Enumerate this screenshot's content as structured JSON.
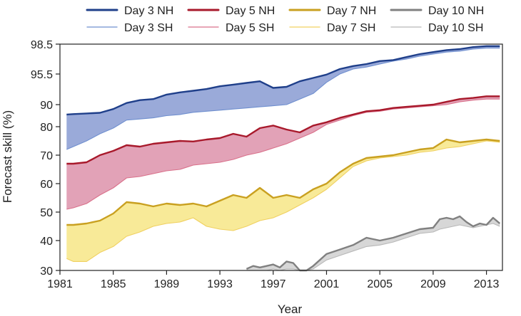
{
  "chart_data": {
    "type": "area",
    "title": "",
    "xlabel": "Year",
    "ylabel": "Forecast skill (%)",
    "x_ticks": [
      1981,
      1985,
      1989,
      1993,
      1997,
      2001,
      2005,
      2009,
      2013
    ],
    "y_ticks": [
      30,
      40,
      50,
      60,
      70,
      80,
      90,
      95.5,
      98.5
    ],
    "xlim": [
      1981,
      2014.2
    ],
    "ylim": [
      30,
      98.5
    ],
    "legend_position": "top",
    "series": [
      {
        "name": "Day 3 NH",
        "hemisphere": "NH",
        "day": 3,
        "color": "#1f3f8a",
        "x": [
          1981.5,
          1982,
          1983,
          1984,
          1985,
          1986,
          1987,
          1988,
          1989,
          1990,
          1991,
          1992,
          1993,
          1994,
          1995,
          1996,
          1997,
          1998,
          1999,
          2000,
          2001,
          2002,
          2003,
          2004,
          2005,
          2006,
          2007,
          2008,
          2009,
          2010,
          2011,
          2012,
          2013,
          2014
        ],
        "y": [
          85.5,
          85.7,
          86.0,
          86.3,
          88.0,
          90.3,
          90.8,
          91.0,
          91.8,
          92.2,
          92.5,
          92.8,
          93.3,
          93.6,
          93.9,
          94.2,
          93.0,
          93.2,
          94.2,
          94.8,
          95.4,
          96.0,
          96.3,
          96.5,
          96.8,
          96.9,
          97.2,
          97.5,
          97.7,
          97.9,
          98.0,
          98.2,
          98.3,
          98.3
        ]
      },
      {
        "name": "Day 3 SH",
        "hemisphere": "SH",
        "day": 3,
        "color": "#6f8fcf",
        "x": [
          1981.5,
          1982,
          1983,
          1984,
          1985,
          1986,
          1987,
          1988,
          1989,
          1990,
          1991,
          1992,
          1993,
          1994,
          1995,
          1996,
          1997,
          1998,
          1999,
          2000,
          2001,
          2002,
          2003,
          2004,
          2005,
          2006,
          2007,
          2008,
          2009,
          2010,
          2011,
          2012,
          2013,
          2014
        ],
        "y": [
          72.0,
          73.0,
          75.0,
          77.5,
          79.5,
          83.0,
          83.5,
          84.0,
          85.0,
          85.5,
          86.5,
          87.0,
          87.5,
          88.0,
          88.5,
          89.0,
          89.5,
          90.0,
          91.0,
          92.0,
          94.0,
          95.5,
          96.0,
          96.2,
          96.5,
          96.8,
          97.0,
          97.3,
          97.5,
          97.7,
          97.8,
          98.0,
          98.1,
          98.1
        ]
      },
      {
        "name": "Day 5 NH",
        "hemisphere": "NH",
        "day": 5,
        "color": "#a8192b",
        "x": [
          1981.5,
          1982,
          1983,
          1984,
          1985,
          1986,
          1987,
          1988,
          1989,
          1990,
          1991,
          1992,
          1993,
          1994,
          1995,
          1996,
          1997,
          1998,
          1999,
          2000,
          2001,
          2002,
          2003,
          2004,
          2005,
          2006,
          2007,
          2008,
          2009,
          2010,
          2011,
          2012,
          2013,
          2014
        ],
        "y": [
          67.0,
          67.0,
          67.5,
          70.0,
          71.5,
          73.5,
          73.0,
          74.0,
          74.5,
          75.0,
          74.8,
          75.5,
          76.0,
          77.5,
          76.5,
          79.5,
          80.5,
          79.0,
          78.0,
          80.5,
          82.0,
          84.0,
          85.5,
          87.0,
          87.5,
          88.5,
          89.0,
          89.5,
          90.0,
          90.5,
          91.0,
          91.2,
          91.5,
          91.5
        ]
      },
      {
        "name": "Day 5 SH",
        "hemisphere": "SH",
        "day": 5,
        "color": "#d9708a",
        "x": [
          1981.5,
          1982,
          1983,
          1984,
          1985,
          1986,
          1987,
          1988,
          1989,
          1990,
          1991,
          1992,
          1993,
          1994,
          1995,
          1996,
          1997,
          1998,
          1999,
          2000,
          2001,
          2002,
          2003,
          2004,
          2005,
          2006,
          2007,
          2008,
          2009,
          2010,
          2011,
          2012,
          2013,
          2014
        ],
        "y": [
          51.0,
          51.5,
          53.0,
          56.0,
          58.5,
          62.0,
          62.5,
          63.5,
          64.5,
          65.0,
          66.5,
          67.0,
          67.5,
          68.5,
          70.0,
          71.0,
          72.5,
          74.0,
          76.0,
          78.0,
          81.0,
          83.0,
          85.0,
          86.5,
          87.0,
          88.0,
          88.5,
          89.0,
          89.5,
          90.0,
          90.5,
          90.8,
          91.0,
          91.0
        ]
      },
      {
        "name": "Day 7 NH",
        "hemisphere": "NH",
        "day": 7,
        "color": "#c9a020",
        "x": [
          1981.5,
          1982,
          1983,
          1984,
          1985,
          1986,
          1987,
          1988,
          1989,
          1990,
          1991,
          1992,
          1993,
          1994,
          1995,
          1996,
          1997,
          1998,
          1999,
          2000,
          2001,
          2002,
          2003,
          2004,
          2005,
          2006,
          2007,
          2008,
          2009,
          2010,
          2011,
          2012,
          2013,
          2014
        ],
        "y": [
          45.5,
          45.5,
          46.0,
          47.0,
          49.5,
          53.5,
          53.0,
          52.0,
          53.0,
          52.5,
          53.0,
          52.0,
          54.0,
          56.0,
          55.0,
          58.5,
          55.0,
          56.0,
          55.0,
          58.0,
          60.0,
          64.0,
          67.0,
          69.0,
          69.5,
          70.0,
          71.0,
          72.0,
          72.5,
          75.5,
          74.5,
          75.0,
          75.5,
          75.0
        ]
      },
      {
        "name": "Day 7 SH",
        "hemisphere": "SH",
        "day": 7,
        "color": "#f0d060",
        "x": [
          1981.5,
          1982,
          1983,
          1984,
          1985,
          1986,
          1987,
          1988,
          1989,
          1990,
          1991,
          1992,
          1993,
          1994,
          1995,
          1996,
          1997,
          1998,
          1999,
          2000,
          2001,
          2002,
          2003,
          2004,
          2005,
          2006,
          2007,
          2008,
          2009,
          2010,
          2011,
          2012,
          2013,
          2014
        ],
        "y": [
          34.0,
          33.0,
          33.0,
          36.0,
          38.0,
          41.5,
          43.0,
          45.0,
          46.0,
          46.5,
          48.0,
          45.0,
          44.0,
          43.5,
          45.0,
          47.0,
          48.0,
          50.0,
          52.5,
          55.0,
          58.0,
          62.0,
          66.0,
          68.0,
          69.0,
          69.5,
          70.0,
          71.0,
          71.5,
          72.5,
          73.0,
          74.0,
          75.0,
          74.5
        ]
      },
      {
        "name": "Day 10 NH",
        "hemisphere": "NH",
        "day": 10,
        "color": "#808080",
        "x": [
          1995,
          1995.5,
          1996,
          1996.5,
          1997,
          1997.5,
          1998,
          1998.5,
          1999,
          1999.5,
          2000,
          2001,
          2002,
          2003,
          2004,
          2005,
          2006,
          2007,
          2008,
          2009,
          2009.5,
          2010,
          2010.5,
          2011,
          2011.5,
          2012,
          2012.5,
          2013,
          2013.5,
          2014
        ],
        "y": [
          30.5,
          31.5,
          31.0,
          31.5,
          32.0,
          31.0,
          33.0,
          32.5,
          30.0,
          30.0,
          31.5,
          35.5,
          37.0,
          38.5,
          41.0,
          40.0,
          41.0,
          42.5,
          44.0,
          44.5,
          47.5,
          48.0,
          47.5,
          48.5,
          46.5,
          45.0,
          46.0,
          45.5,
          48.0,
          46.0
        ]
      },
      {
        "name": "Day 10 SH",
        "hemisphere": "SH",
        "day": 10,
        "color": "#b8b8b8",
        "x": [
          1995,
          1995.5,
          1996,
          1996.5,
          1997,
          1997.5,
          1998,
          1998.5,
          1999,
          1999.5,
          2000,
          2001,
          2002,
          2003,
          2004,
          2005,
          2006,
          2007,
          2008,
          2009,
          2009.5,
          2010,
          2010.5,
          2011,
          2011.5,
          2012,
          2012.5,
          2013,
          2013.5,
          2014
        ],
        "y": [
          30.0,
          30.0,
          30.0,
          30.0,
          30.5,
          30.0,
          30.5,
          30.5,
          30.0,
          30.0,
          30.5,
          33.5,
          35.0,
          36.5,
          38.0,
          38.5,
          39.5,
          41.0,
          42.5,
          43.0,
          44.0,
          44.5,
          45.0,
          45.5,
          45.0,
          44.5,
          45.0,
          45.5,
          46.0,
          45.0
        ]
      }
    ],
    "fills": [
      {
        "between": [
          "Day 3 NH",
          "Day 3 SH"
        ],
        "color": "#9aaad9"
      },
      {
        "between": [
          "Day 5 NH",
          "Day 5 SH"
        ],
        "color": "#e2a2b7"
      },
      {
        "between": [
          "Day 7 NH",
          "Day 7 SH"
        ],
        "color": "#f8ea98"
      },
      {
        "between": [
          "Day 10 NH",
          "Day 10 SH"
        ],
        "color": "#d7d7d7"
      }
    ],
    "legend": [
      {
        "label": "Day 3 NH",
        "color": "#1f3f8a",
        "weight": "thick"
      },
      {
        "label": "Day 5 NH",
        "color": "#a8192b",
        "weight": "thick"
      },
      {
        "label": "Day 7 NH",
        "color": "#c9a020",
        "weight": "thick"
      },
      {
        "label": "Day 10 NH",
        "color": "#808080",
        "weight": "thick"
      },
      {
        "label": "Day 3 SH",
        "color": "#6f8fcf",
        "weight": "thin"
      },
      {
        "label": "Day 5 SH",
        "color": "#d9708a",
        "weight": "thin"
      },
      {
        "label": "Day 7 SH",
        "color": "#f0d060",
        "weight": "thin"
      },
      {
        "label": "Day 10 SH",
        "color": "#b8b8b8",
        "weight": "thin"
      }
    ]
  }
}
